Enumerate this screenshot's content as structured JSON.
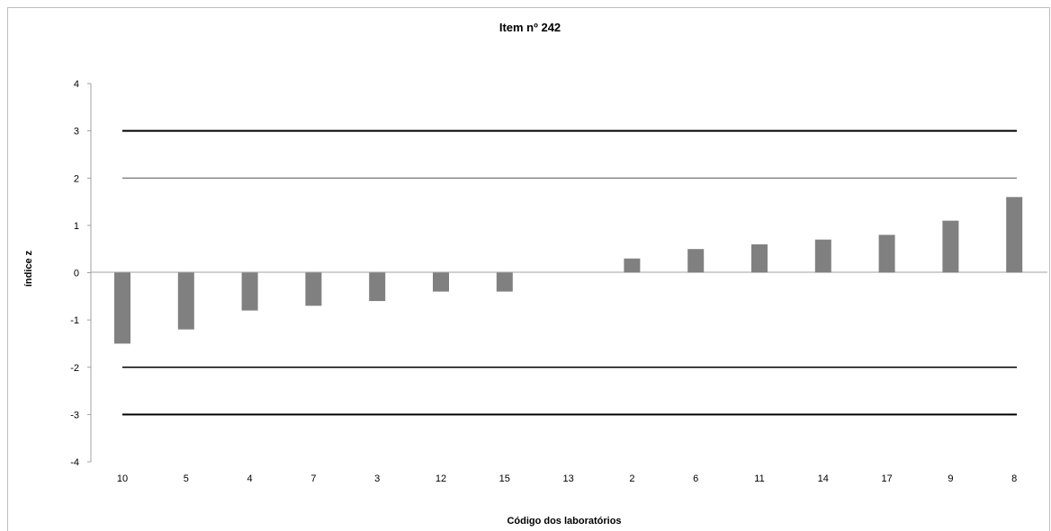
{
  "chart_data": {
    "type": "bar",
    "title": "Item nº 242",
    "xlabel": "Código dos laboratórios",
    "ylabel": "índice z",
    "categories": [
      "10",
      "5",
      "4",
      "7",
      "3",
      "12",
      "15",
      "13",
      "2",
      "6",
      "11",
      "14",
      "17",
      "9",
      "8"
    ],
    "values": [
      -1.5,
      -1.2,
      -0.8,
      -0.7,
      -0.6,
      -0.4,
      -0.4,
      0,
      0.3,
      0.5,
      0.6,
      0.7,
      0.8,
      1.1,
      1.6
    ],
    "ylim": [
      -4,
      4
    ],
    "yticks": [
      4,
      3,
      2,
      1,
      0,
      -1,
      -2,
      -3,
      -4
    ],
    "reference_lines": [
      {
        "y": 3,
        "color": "#000000",
        "weight": "thick"
      },
      {
        "y": 2,
        "color": "#8c8c8c",
        "weight": "normal"
      },
      {
        "y": -2,
        "color": "#000000",
        "weight": "normal"
      },
      {
        "y": -3,
        "color": "#000000",
        "weight": "thick"
      }
    ],
    "bar_color": "#808080",
    "grid": false,
    "legend": "none"
  }
}
